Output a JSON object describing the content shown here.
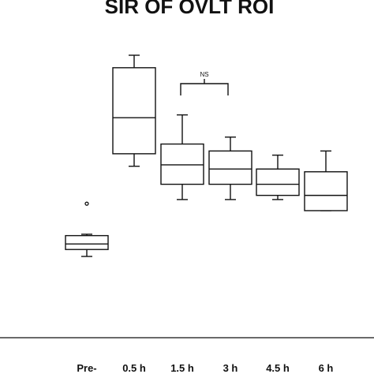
{
  "chart_data": {
    "type": "box",
    "title": "SIR OF OVLT ROI",
    "xlabel": "",
    "ylabel": "",
    "y_axis_shown": false,
    "grid": false,
    "categories": [
      "Pre-",
      "0.5 h",
      "1.5 h",
      "3 h",
      "4.5 h",
      "6 h"
    ],
    "boxes": [
      {
        "category": "Pre-",
        "whisker_low": 0.95,
        "q1": 1.0,
        "median": 1.04,
        "q3": 1.1,
        "whisker_high": 1.11,
        "outliers": [
          1.33
        ]
      },
      {
        "category": "0.5 h",
        "whisker_low": 1.6,
        "q1": 1.69,
        "median": 1.95,
        "q3": 2.31,
        "whisker_high": 2.4,
        "outliers": []
      },
      {
        "category": "1.5 h",
        "whisker_low": 1.36,
        "q1": 1.47,
        "median": 1.61,
        "q3": 1.76,
        "whisker_high": 1.97,
        "outliers": []
      },
      {
        "category": "3 h",
        "whisker_low": 1.36,
        "q1": 1.47,
        "median": 1.58,
        "q3": 1.71,
        "whisker_high": 1.81,
        "outliers": []
      },
      {
        "category": "4.5 h",
        "whisker_low": 1.36,
        "q1": 1.39,
        "median": 1.47,
        "q3": 1.58,
        "whisker_high": 1.68,
        "outliers": []
      },
      {
        "category": "6 h",
        "whisker_low": 1.28,
        "q1": 1.28,
        "median": 1.39,
        "q3": 1.56,
        "whisker_high": 1.71,
        "outliers": []
      }
    ],
    "annotations": [
      {
        "text": "NS",
        "from_category": "1.5 h",
        "to_category": "3 h"
      }
    ]
  }
}
